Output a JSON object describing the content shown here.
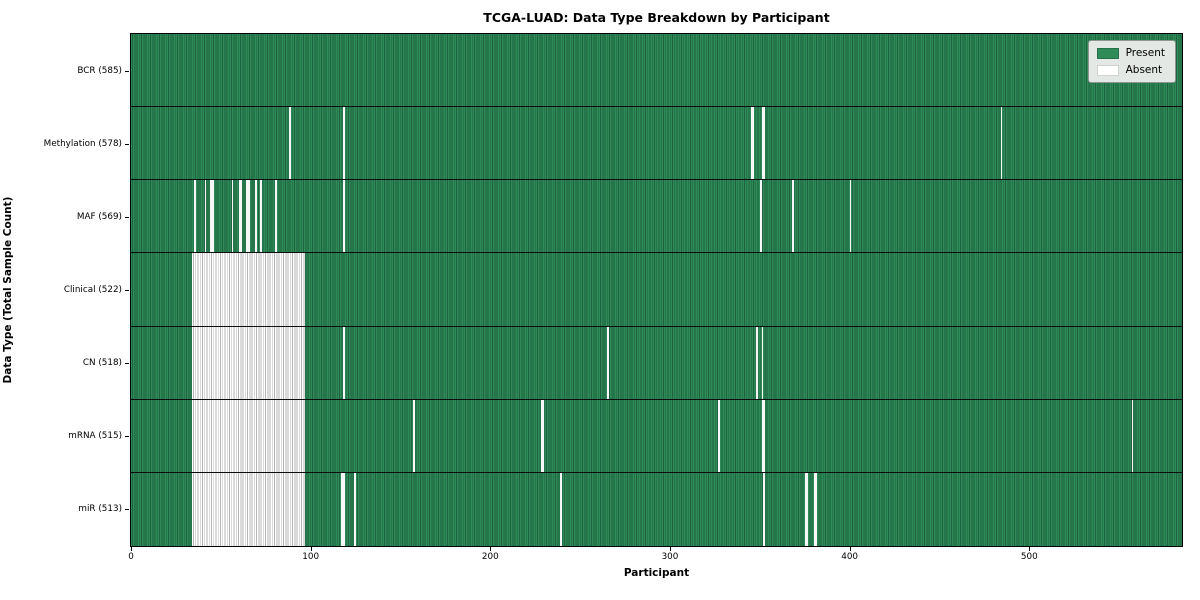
{
  "title": "TCGA-LUAD: Data Type Breakdown by Participant",
  "xlabel": "Participant",
  "ylabel": "Data Type (Total Sample Count)",
  "legend": {
    "present_label": "Present",
    "absent_label": "Absent"
  },
  "colors": {
    "present": "#2e8b57",
    "present_edge": "#1f6140",
    "absent": "#ffffff",
    "absent_edge": "#b5b5b5",
    "legend_face": "#e4e8e4"
  },
  "chart_data": {
    "type": "heatmap",
    "title": "TCGA-LUAD: Data Type Breakdown by Participant",
    "xlabel": "Participant",
    "ylabel": "Data Type (Total Sample Count)",
    "xlim": [
      0,
      585
    ],
    "n_participants": 585,
    "x_ticks": [
      0,
      100,
      200,
      300,
      400,
      500
    ],
    "legend_entries": [
      "Present",
      "Absent"
    ],
    "legend_position": "upper right",
    "grid": false,
    "rows": [
      {
        "name": "BCR",
        "total": 585,
        "label": "BCR (585)",
        "absent_ranges": []
      },
      {
        "name": "Methylation",
        "total": 578,
        "label": "Methylation (578)",
        "absent_ranges": [
          [
            88,
            88
          ],
          [
            118,
            118
          ],
          [
            345,
            346
          ],
          [
            351,
            352
          ],
          [
            484,
            484
          ]
        ]
      },
      {
        "name": "MAF",
        "total": 569,
        "label": "MAF (569)",
        "absent_ranges": [
          [
            35,
            35
          ],
          [
            41,
            41
          ],
          [
            44,
            45
          ],
          [
            56,
            56
          ],
          [
            60,
            61
          ],
          [
            64,
            65
          ],
          [
            69,
            69
          ],
          [
            72,
            72
          ],
          [
            80,
            80
          ],
          [
            118,
            118
          ],
          [
            350,
            350
          ],
          [
            368,
            368
          ],
          [
            400,
            400
          ]
        ]
      },
      {
        "name": "Clinical",
        "total": 522,
        "label": "Clinical (522)",
        "absent_ranges": [
          [
            34,
            96
          ]
        ]
      },
      {
        "name": "CN",
        "total": 518,
        "label": "CN (518)",
        "absent_ranges": [
          [
            34,
            96
          ],
          [
            118,
            118
          ],
          [
            265,
            265
          ],
          [
            348,
            348
          ],
          [
            351,
            351
          ]
        ]
      },
      {
        "name": "mRNA",
        "total": 515,
        "label": "mRNA (515)",
        "absent_ranges": [
          [
            34,
            96
          ],
          [
            157,
            157
          ],
          [
            228,
            229
          ],
          [
            327,
            327
          ],
          [
            351,
            352
          ],
          [
            557,
            557
          ]
        ]
      },
      {
        "name": "miR",
        "total": 513,
        "label": "miR (513)",
        "absent_ranges": [
          [
            34,
            96
          ],
          [
            117,
            118
          ],
          [
            124,
            124
          ],
          [
            239,
            239
          ],
          [
            352,
            352
          ],
          [
            375,
            376
          ],
          [
            380,
            381
          ]
        ]
      }
    ]
  }
}
